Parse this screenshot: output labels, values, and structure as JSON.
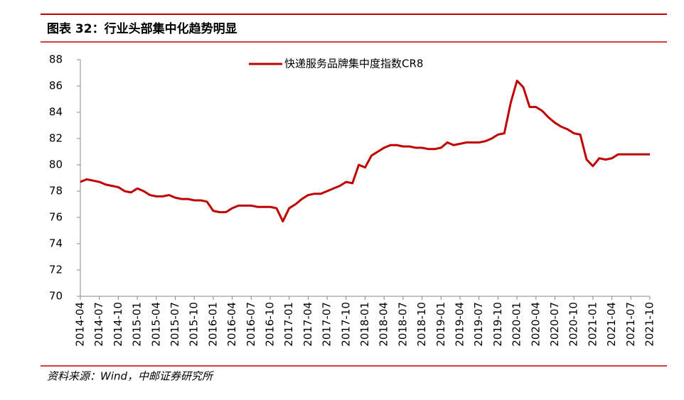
{
  "header": {
    "title": "图表 32：行业头部集中化趋势明显"
  },
  "footer": {
    "source": "资料来源：Wind，中邮证券研究所"
  },
  "chart_data": {
    "type": "line",
    "categories": [
      "2014-04",
      null,
      null,
      "2014-07",
      null,
      null,
      "2014-10",
      null,
      null,
      "2015-01",
      null,
      null,
      "2015-04",
      null,
      null,
      "2015-07",
      null,
      null,
      "2015-10",
      null,
      null,
      "2016-01",
      null,
      null,
      "2016-04",
      null,
      null,
      "2016-07",
      null,
      null,
      "2016-10",
      null,
      null,
      "2017-01",
      null,
      null,
      "2017-04",
      null,
      null,
      "2017-07",
      null,
      null,
      "2017-10",
      null,
      null,
      "2018-01",
      null,
      null,
      "2018-04",
      null,
      null,
      "2018-07",
      null,
      null,
      "2018-10",
      null,
      null,
      "2019-01",
      null,
      null,
      "2019-04",
      null,
      null,
      "2019-07",
      null,
      null,
      "2019-10",
      null,
      null,
      "2020-01",
      null,
      null,
      "2020-04",
      null,
      null,
      "2020-07",
      null,
      null,
      "2020-10",
      null,
      null,
      "2021-01",
      null,
      null,
      "2021-04",
      null,
      null,
      "2021-07",
      null,
      null,
      "2021-10"
    ],
    "series": [
      {
        "name": "快递服务品牌集中度指数CR8",
        "color": "#c00000",
        "values": [
          78.7,
          78.9,
          78.8,
          78.7,
          78.5,
          78.4,
          78.3,
          78.0,
          77.9,
          78.2,
          78.0,
          77.7,
          77.6,
          77.6,
          77.7,
          77.5,
          77.4,
          77.4,
          77.3,
          77.3,
          77.2,
          76.5,
          76.4,
          76.4,
          76.7,
          76.9,
          76.9,
          76.9,
          76.8,
          76.8,
          76.8,
          76.7,
          75.7,
          76.7,
          77.0,
          77.4,
          77.7,
          77.8,
          77.8,
          78.0,
          78.2,
          78.4,
          78.7,
          78.6,
          80.0,
          79.8,
          80.7,
          81.0,
          81.3,
          81.5,
          81.5,
          81.4,
          81.4,
          81.3,
          81.3,
          81.2,
          81.2,
          81.3,
          81.7,
          81.5,
          81.6,
          81.7,
          81.7,
          81.7,
          81.8,
          82.0,
          82.3,
          82.4,
          84.7,
          86.4,
          85.9,
          84.4,
          84.4,
          84.1,
          83.6,
          83.2,
          82.9,
          82.7,
          82.4,
          82.3,
          80.4,
          79.9,
          80.5,
          80.4,
          80.5,
          80.8,
          80.8,
          80.8,
          80.8,
          80.8,
          80.8
        ]
      }
    ],
    "ylim": [
      70,
      88
    ],
    "yticks": [
      70,
      72,
      74,
      76,
      78,
      80,
      82,
      84,
      86,
      88
    ]
  }
}
